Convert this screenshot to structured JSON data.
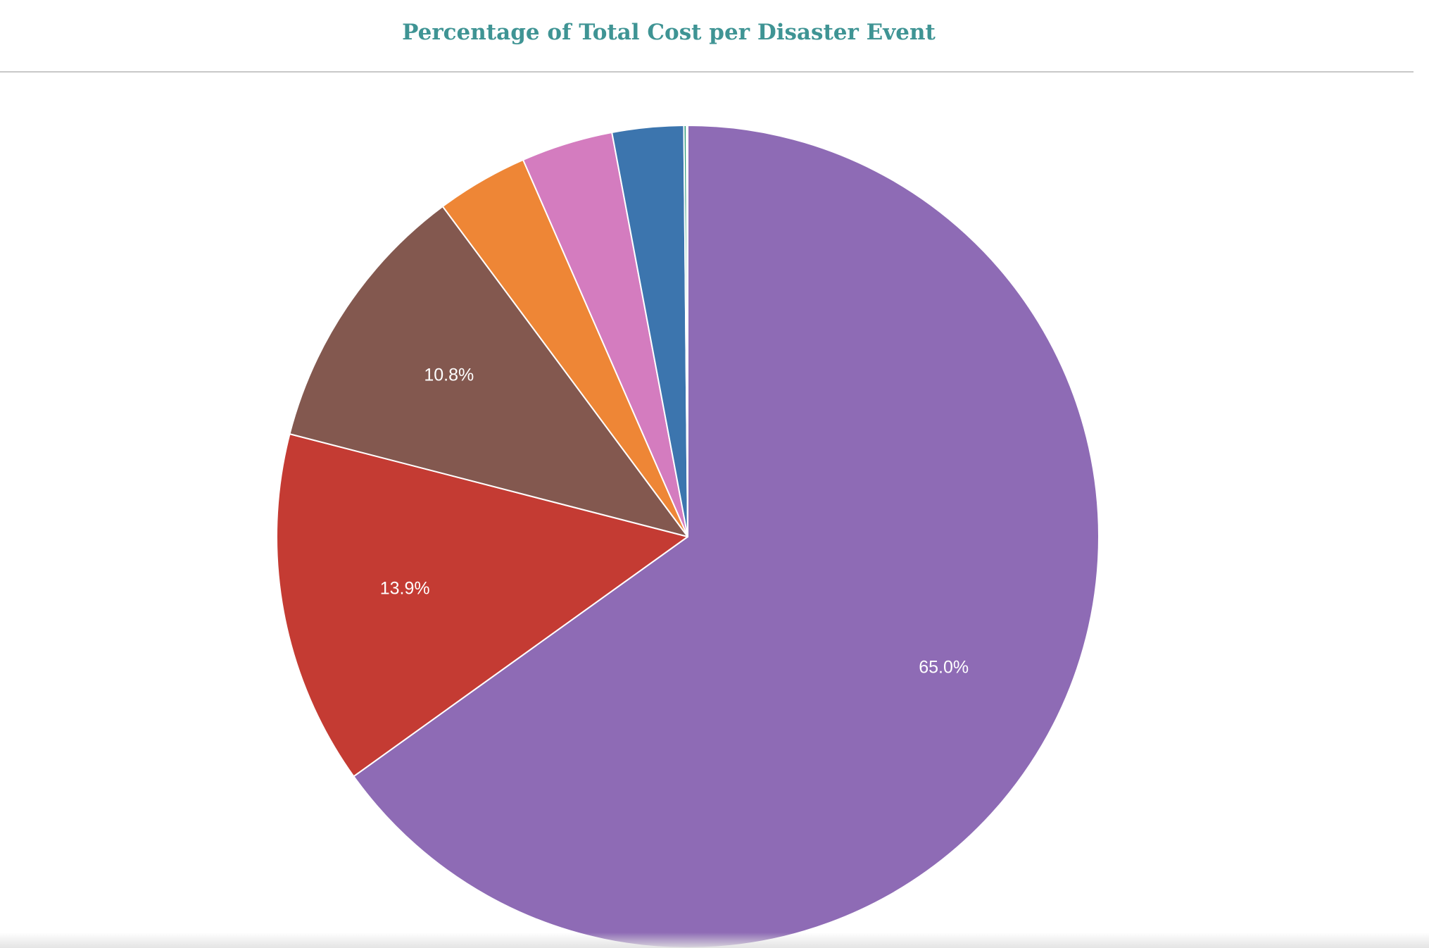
{
  "chart_data": {
    "type": "pie",
    "title": "Percentage of Total Cost per Disaster Event",
    "slices": [
      {
        "value": 65.0,
        "label": "65.0%",
        "color": "#8e6bb5"
      },
      {
        "value": 13.9,
        "label": "13.9%",
        "color": "#c43b33"
      },
      {
        "value": 10.8,
        "label": "10.8%",
        "color": "#83584f"
      },
      {
        "value": 3.6,
        "label": "",
        "color": "#ee8636"
      },
      {
        "value": 3.6,
        "label": "",
        "color": "#d47cbf"
      },
      {
        "value": 2.8,
        "label": "",
        "color": "#3c75ae"
      },
      {
        "value": 0.1,
        "label": "",
        "color": "#2e9a7a"
      },
      {
        "value": 0.05,
        "label": "",
        "color": "#4f9a3c"
      }
    ],
    "direction": "clockwise",
    "start_angle": "12 o'clock"
  }
}
